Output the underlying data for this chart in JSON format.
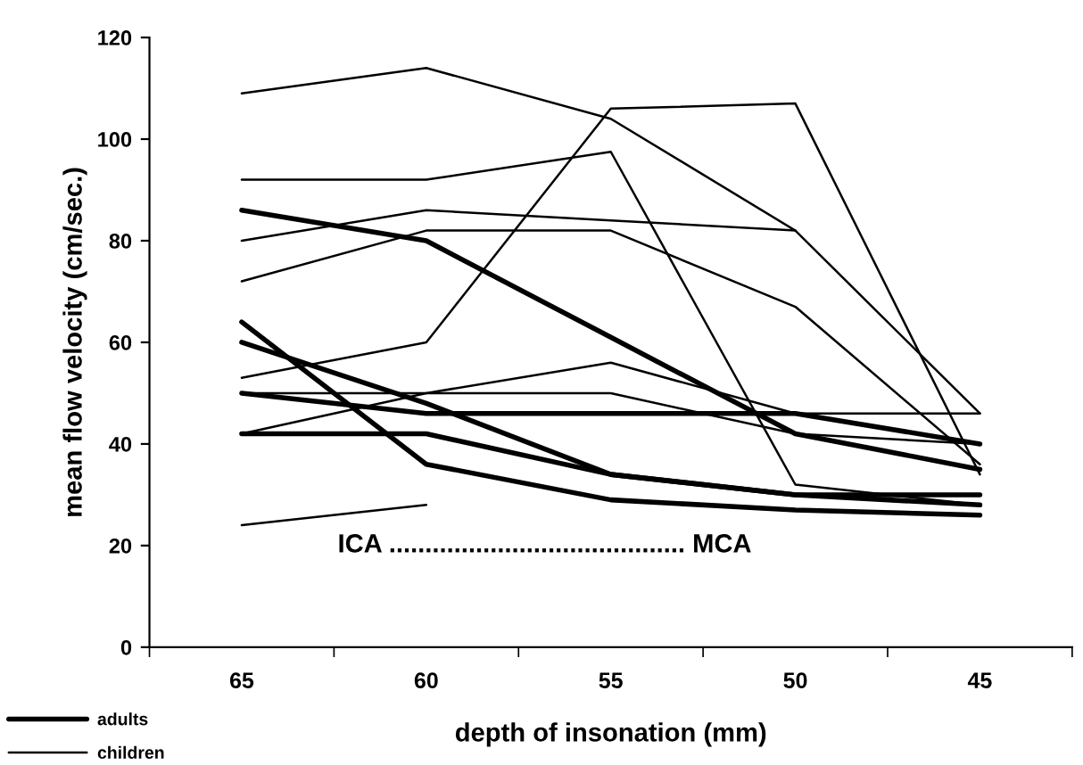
{
  "chart_data": {
    "type": "line",
    "xlabel": "depth of insonation (mm)",
    "ylabel": "mean flow velocity (cm/sec.)",
    "categories": [
      "65",
      "60",
      "55",
      "50",
      "45"
    ],
    "ylim": [
      0,
      120
    ],
    "yticks": [
      0,
      20,
      40,
      60,
      80,
      100,
      120
    ],
    "grid": false,
    "legend": "bottom left",
    "marker": "none",
    "line_style": "solid",
    "annotations": [
      "ICA ......................................... MCA"
    ],
    "series": [
      {
        "name": "adults",
        "color": "#000000",
        "values": [
          86,
          80,
          61,
          42,
          35
        ]
      },
      {
        "color": "#000000",
        "values": [
          64,
          36,
          29,
          27,
          26
        ]
      },
      {
        "color": "#000000",
        "values": [
          60,
          48,
          34,
          30,
          28
        ]
      },
      {
        "color": "#000000",
        "values": [
          42,
          42,
          34,
          30,
          30
        ]
      },
      {
        "color": "#000000",
        "values": [
          50,
          46,
          46,
          46,
          40
        ]
      },
      {
        "name": "children",
        "color": "#000000",
        "values": [
          109,
          114,
          104,
          82,
          46
        ]
      },
      {
        "color": "#000000",
        "values": [
          92,
          92,
          97.5,
          32,
          28
        ]
      },
      {
        "color": "#000000",
        "values": [
          80,
          86,
          84,
          82,
          null
        ]
      },
      {
        "color": "#000000",
        "values": [
          72,
          82,
          82,
          67,
          36
        ]
      },
      {
        "color": "#000000",
        "values": [
          53,
          60,
          106,
          107,
          34
        ]
      },
      {
        "color": "#000000",
        "values": [
          50,
          50,
          50,
          42,
          40
        ]
      },
      {
        "color": "#000000",
        "values": [
          42,
          50,
          56,
          46,
          46
        ]
      },
      {
        "color": "#000000",
        "values": [
          24,
          28,
          null,
          null,
          null
        ]
      }
    ]
  }
}
